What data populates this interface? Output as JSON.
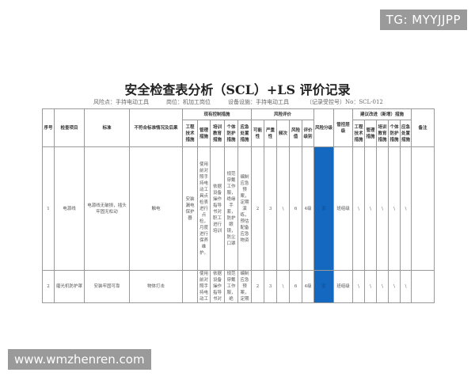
{
  "watermarks": {
    "top": "TG: MYYJJPP",
    "bottom": "www.wmzhenren.com"
  },
  "title": "安全检查表分析（SCL）+LS 评价记录",
  "subtitle": {
    "risk_point": "风险点：手持电动工具",
    "post": "岗位：机加工岗位",
    "equipment": "设备设施：手持电动工具",
    "record_no": "（记录受控号）No：SCL-012"
  },
  "headers": {
    "no": "序号",
    "item": "检查项目",
    "standard": "标准",
    "nonconform": "不符合标准情况及后果",
    "existing": "现有控制措施",
    "existing_sub": [
      "工程技术措施",
      "管理措施",
      "培训教育措施",
      "个体防护措施",
      "应急处置措施"
    ],
    "risk_eval": "风险评价",
    "risk_sub": [
      "可能性",
      "严重性",
      "频次",
      "风险值",
      "评价级别"
    ],
    "risk_level": "风险分级",
    "control_level": "管控层级",
    "suggest": "建议改进（新增）措施",
    "suggest_sub": [
      "工程技术措施",
      "管理措施",
      "培训教育措施",
      "个体防护措施",
      "应急处置措施"
    ],
    "remark": "备注"
  },
  "rows": [
    {
      "no": "1",
      "item": "电源线",
      "standard": "电源线无破损，插头牢固无松动",
      "nonconform": "触电",
      "eng": "安装漏电保护器",
      "mgmt": "使用前对照手持电动工具点检表进行点检，月度进行保养维护。",
      "train": "依据设备操作指导书对职工进行培训",
      "ppe": "规范穿戴工作服，绝缘手套，防护眼镜，防尘口罩",
      "emerg": "编制应急预案，定期演练，预估配备应急物资",
      "L": "2",
      "S": "3",
      "F": "\\",
      "R": "6",
      "grade": "4级",
      "level": "蓝",
      "ctrl": "班组级",
      "sug": [
        "\\",
        "\\",
        "\\",
        "\\",
        "\\"
      ],
      "remark": ""
    },
    {
      "no": "2",
      "item": "磨光机防护罩",
      "standard": "安装牢固可靠",
      "nonconform": "物体打击",
      "eng": "",
      "mgmt": "使用前对照手持电动工",
      "train": "依据设备操作指导书对",
      "ppe": "规范穿戴工作服，绝",
      "emerg": "编制应急预案，定期",
      "L": "2",
      "S": "3",
      "F": "\\",
      "R": "6",
      "grade": "4级",
      "level": "蓝",
      "ctrl": "班组级",
      "sug": [
        "\\",
        "\\",
        "\\",
        "\\",
        "\\"
      ],
      "remark": ""
    }
  ],
  "colors": {
    "risk_blue": "#1468c0"
  }
}
